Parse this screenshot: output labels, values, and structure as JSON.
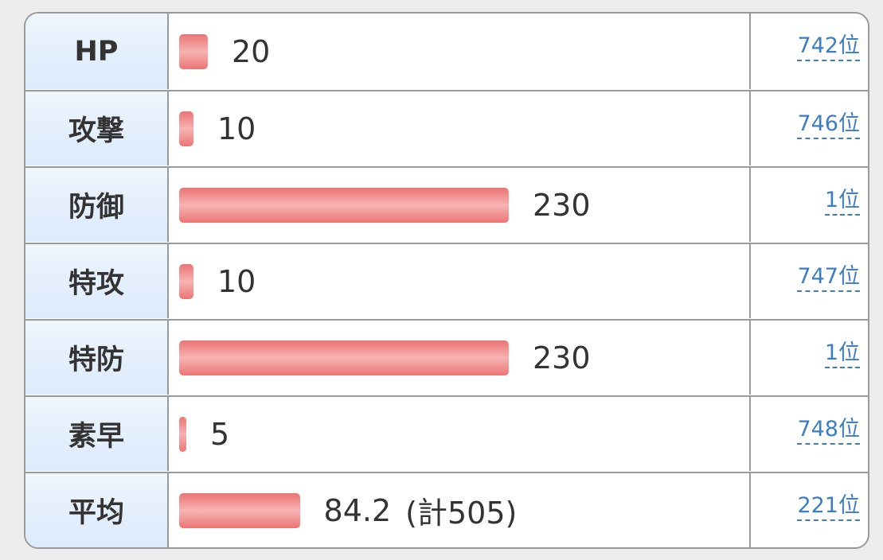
{
  "table": {
    "rows": [
      {
        "label": "HP",
        "value": 20,
        "rank": "742位"
      },
      {
        "label": "攻撃",
        "value": 10,
        "rank": "746位"
      },
      {
        "label": "防御",
        "value": 230,
        "rank": "1位"
      },
      {
        "label": "特攻",
        "value": 10,
        "rank": "747位"
      },
      {
        "label": "特防",
        "value": 230,
        "rank": "1位"
      },
      {
        "label": "素早",
        "value": 5,
        "rank": "748位"
      },
      {
        "label": "平均",
        "value": 84.2,
        "total": "(計505)",
        "rank": "221位"
      }
    ]
  }
}
